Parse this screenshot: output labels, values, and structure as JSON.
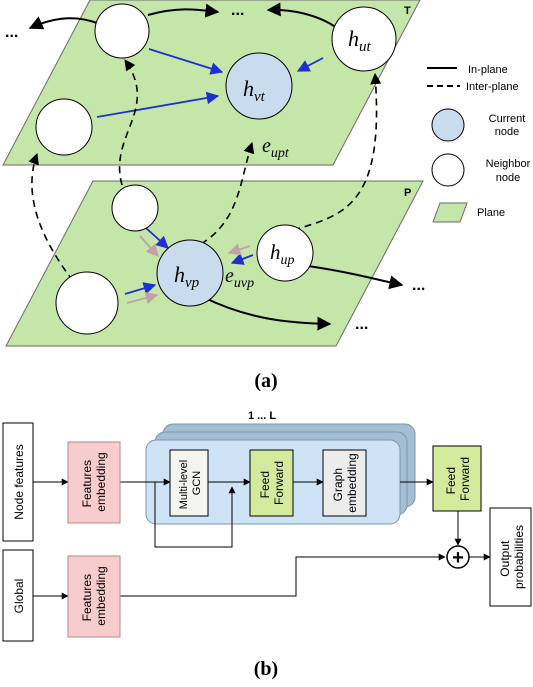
{
  "colors": {
    "plane_fill": "#c4e6a9",
    "plane_stroke": "#6a6a6a",
    "current_node_fill": "#c8dcee",
    "neighbor_fill": "#ffffff",
    "blue_arrow": "#1f2fd0",
    "pink_arrow": "#c2a0a4",
    "block_fill": "#cfe3f7",
    "block_back": "#a5bed3",
    "embedding_fill": "#f7cccc",
    "feedforward_fill": "#d4eb9e",
    "gcn_fill": "#f5f5f0",
    "graph_emb_fill": "#ececec"
  },
  "diagram_a": {
    "plane_top_label": "T",
    "plane_bottom_label": "P",
    "ellipses": [
      "...",
      "...",
      "...",
      "..."
    ],
    "node_labels": {
      "h_vt": {
        "base": "h",
        "sub": "vt"
      },
      "h_ut": {
        "base": "h",
        "sub": "ut"
      },
      "h_vp": {
        "base": "h",
        "sub": "vp"
      },
      "h_up": {
        "base": "h",
        "sub": "up"
      },
      "e_upt": {
        "base": "e",
        "sub": "upt"
      },
      "e_uvp": {
        "base": "e",
        "sub": "uvp"
      }
    },
    "legend": {
      "in_plane": "In-plane",
      "inter_plane": "Inter-plane",
      "current_line1": "Current",
      "current_line2": "node",
      "neighbor_line1": "Neighbor",
      "neighbor_line2": "node",
      "plane": "Plane"
    },
    "caption": "(a)"
  },
  "diagram_b": {
    "repeat_label": "1 ... L",
    "node_features": "Node features",
    "global": "Global",
    "features_embedding_1": [
      "Features",
      "embedding"
    ],
    "features_embedding_2": [
      "Features",
      "embedding"
    ],
    "gcn": [
      "Multi-level",
      "GCN"
    ],
    "feed_forward_1": [
      "Feed",
      "Forward"
    ],
    "graph_embedding": [
      "Graph",
      "embedding"
    ],
    "feed_forward_2": [
      "Feed",
      "Forward"
    ],
    "output": [
      "Output",
      "probabilities"
    ],
    "plus_symbol": "+",
    "caption": "(b)"
  }
}
